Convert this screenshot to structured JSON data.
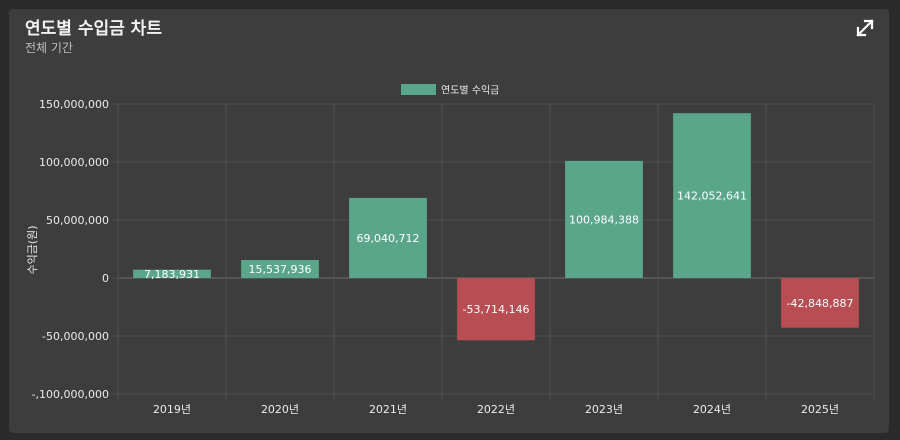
{
  "header": {
    "title": "연도별 수입금 차트",
    "subtitle": "전체 기간",
    "expand_icon": "expand-icon"
  },
  "colors": {
    "positive": "#5aa68a",
    "negative": "#b84e53",
    "grid": "#505050",
    "card": "#3d3d3d"
  },
  "chart_data": {
    "type": "bar",
    "title": "",
    "xlabel": "",
    "ylabel": "수익금(원)",
    "legend": {
      "position": "top-center",
      "entries": [
        "연도별 수익금"
      ]
    },
    "ylim": [
      -100000000,
      150000000
    ],
    "yticks": [
      150000000,
      100000000,
      50000000,
      0,
      -50000000,
      -100000000
    ],
    "ytick_labels": [
      "150,000,000",
      "100,000,000",
      "50,000,000",
      "0",
      "-50,000,000",
      "-,100,000,000"
    ],
    "categories": [
      "2019년",
      "2020년",
      "2021년",
      "2022년",
      "2023년",
      "2024년",
      "2025년"
    ],
    "series": [
      {
        "name": "연도별 수익금",
        "values": [
          7183931,
          15537936,
          69040712,
          -53714146,
          100984388,
          142052641,
          -42848887
        ],
        "labels": [
          "7,183,931",
          "15,537,936",
          "69,040,712",
          "-53,714,146",
          "100,984,388",
          "142,052,641",
          "-42,848,887"
        ]
      }
    ],
    "grid": true
  }
}
